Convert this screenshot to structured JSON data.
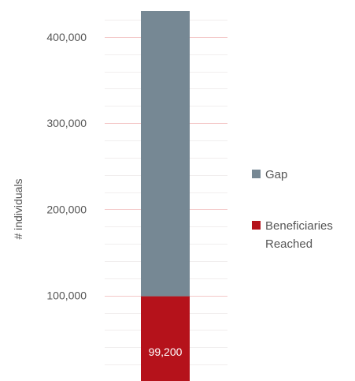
{
  "chart_data": {
    "type": "bar",
    "stacked": true,
    "categories": [
      ""
    ],
    "ylabel": "# individuals",
    "ylim": [
      0,
      430000
    ],
    "yticks": [
      {
        "value": 100000,
        "label": "100,000"
      },
      {
        "value": 200000,
        "label": "200,000"
      },
      {
        "value": 300000,
        "label": "300,000"
      },
      {
        "value": 400000,
        "label": "400,000"
      }
    ],
    "series": [
      {
        "name": "Beneficiaries Reached",
        "values": [
          99200
        ],
        "color": "#b5121b",
        "data_label": "99,200"
      },
      {
        "name": "Gap",
        "values": [
          330800
        ],
        "color": "#768894"
      }
    ],
    "legend": {
      "position": "right",
      "entries": [
        {
          "lines": [
            "Gap"
          ],
          "color": "#768894"
        },
        {
          "lines": [
            "Beneficiaries",
            "Reached"
          ],
          "color": "#b5121b"
        }
      ]
    },
    "grid": {
      "major_color": "#f4c9c9",
      "minor_color": "#f1eeee"
    }
  }
}
